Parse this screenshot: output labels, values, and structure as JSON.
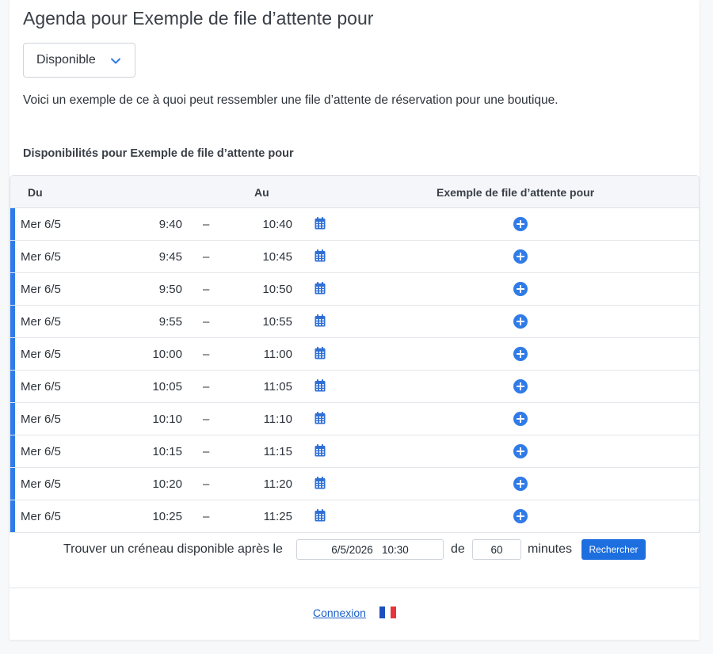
{
  "page": {
    "title": "Agenda pour Exemple de file d’attente pour",
    "status": {
      "selected": "Disponible",
      "icon": "chevron-down-icon"
    },
    "intro": "Voici un exemple de ce à quoi peut ressembler une file d’attente de réservation pour une boutique.",
    "subtitle": "Disponibilités pour Exemple de file d’attente pour"
  },
  "table": {
    "headers": {
      "from": "Du",
      "to": "Au",
      "queue": "Exemple de file d’attente pour"
    },
    "rows": [
      {
        "day": "Mer 6/5",
        "start": "9:40",
        "sep": "–",
        "end": "10:40"
      },
      {
        "day": "Mer 6/5",
        "start": "9:45",
        "sep": "–",
        "end": "10:45"
      },
      {
        "day": "Mer 6/5",
        "start": "9:50",
        "sep": "–",
        "end": "10:50"
      },
      {
        "day": "Mer 6/5",
        "start": "9:55",
        "sep": "–",
        "end": "10:55"
      },
      {
        "day": "Mer 6/5",
        "start": "10:00",
        "sep": "–",
        "end": "11:00"
      },
      {
        "day": "Mer 6/5",
        "start": "10:05",
        "sep": "–",
        "end": "11:05"
      },
      {
        "day": "Mer 6/5",
        "start": "10:10",
        "sep": "–",
        "end": "11:10"
      },
      {
        "day": "Mer 6/5",
        "start": "10:15",
        "sep": "–",
        "end": "11:15"
      },
      {
        "day": "Mer 6/5",
        "start": "10:20",
        "sep": "–",
        "end": "11:20"
      },
      {
        "day": "Mer 6/5",
        "start": "10:25",
        "sep": "–",
        "end": "11:25"
      }
    ],
    "accent_color": "#2f7be8"
  },
  "search": {
    "label_before": "Trouver un créneau disponible après le",
    "datetime_value": "6/5/2026   10:30",
    "label_of": "de",
    "duration_value": "60",
    "label_unit": "minutes",
    "button_label": "Rechercher",
    "button_color": "#1d6fe0"
  },
  "footer": {
    "login_label": "Connexion",
    "flag_icon": "flag-fr-icon",
    "flag_colors": [
      "#1f4fbf",
      "#ffffff",
      "#e8343d"
    ]
  }
}
